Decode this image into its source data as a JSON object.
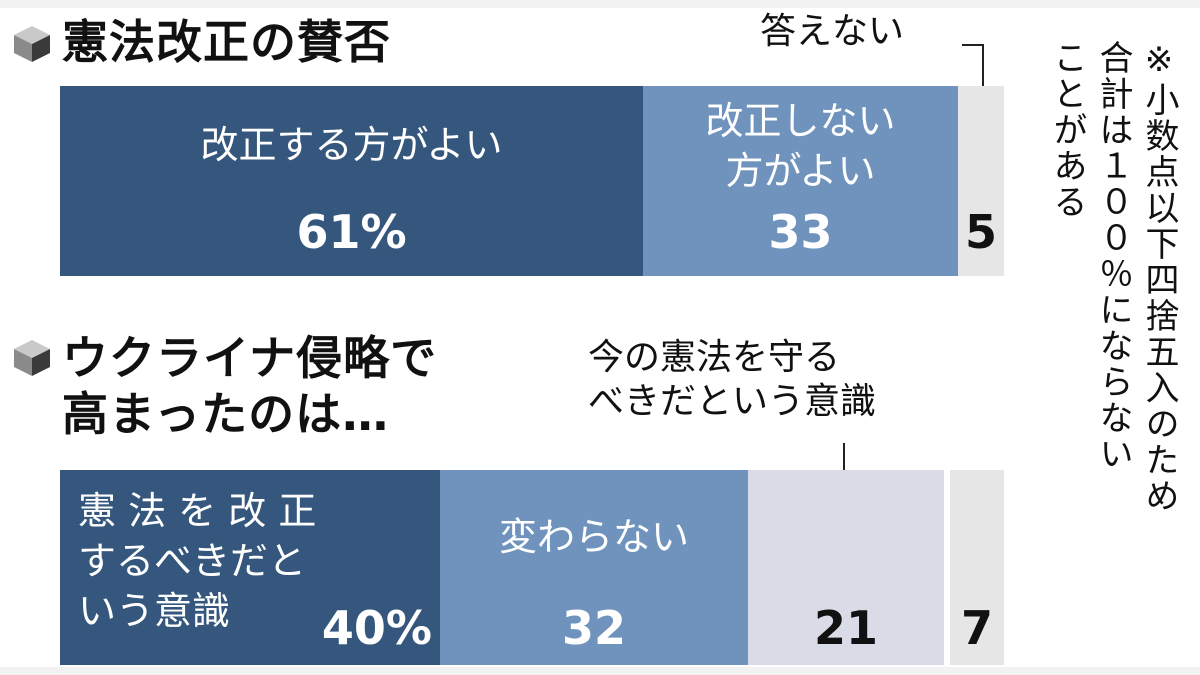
{
  "colors": {
    "dark": "#36577d",
    "mid": "#6f93bd",
    "light": "#d9dce6",
    "lighter": "#e6e6e6"
  },
  "icon": "cube-icon",
  "note": "※小数点以下四捨五入のため\n合計は１００％にならない\nことがある",
  "chart_data": [
    {
      "type": "bar",
      "orientation": "horizontal-stacked",
      "title": "憲法改正の賛否",
      "segments": [
        {
          "label": "改正する方がよい",
          "value": 61,
          "value_label": "61%",
          "color": "#36577d"
        },
        {
          "label": "改正しない\n方がよい",
          "value": 33,
          "value_label": "33",
          "color": "#6f93bd"
        },
        {
          "label": "答えない",
          "value": 5,
          "value_label": "5",
          "color": "#e6e6e6"
        }
      ]
    },
    {
      "type": "bar",
      "orientation": "horizontal-stacked",
      "title": "ウクライナ侵略で\n高まったのは…",
      "segments": [
        {
          "label": "憲 法 を 改 正\nするべきだと\nいう意識",
          "value": 40,
          "value_label": "40%",
          "color": "#36577d"
        },
        {
          "label": "変わらない",
          "value": 32,
          "value_label": "32",
          "color": "#6f93bd"
        },
        {
          "label": "今の憲法を守る\nべきだという意識",
          "value": 21,
          "value_label": "21",
          "color": "#d9dce6"
        },
        {
          "label": "",
          "value": 7,
          "value_label": "7",
          "color": "#e6e6e6"
        }
      ]
    }
  ]
}
